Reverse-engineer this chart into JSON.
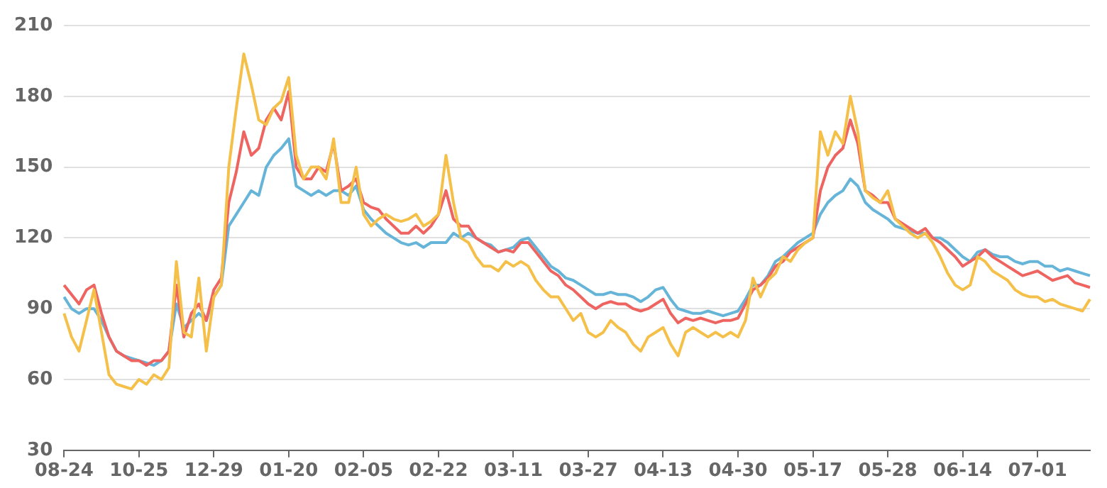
{
  "chart_data": {
    "type": "line",
    "categories": [
      "08-24",
      null,
      null,
      null,
      null,
      null,
      null,
      null,
      null,
      null,
      "10-25",
      null,
      null,
      null,
      null,
      null,
      null,
      null,
      null,
      null,
      "12-29",
      null,
      null,
      null,
      null,
      null,
      null,
      null,
      null,
      null,
      "01-20",
      null,
      null,
      null,
      null,
      null,
      null,
      null,
      null,
      null,
      "02-05",
      null,
      null,
      null,
      null,
      null,
      null,
      null,
      null,
      null,
      "02-22",
      null,
      null,
      null,
      null,
      null,
      null,
      null,
      null,
      null,
      "03-11",
      null,
      null,
      null,
      null,
      null,
      null,
      null,
      null,
      null,
      "03-27",
      null,
      null,
      null,
      null,
      null,
      null,
      null,
      null,
      null,
      "04-13",
      null,
      null,
      null,
      null,
      null,
      null,
      null,
      null,
      null,
      "04-30",
      null,
      null,
      null,
      null,
      null,
      null,
      null,
      null,
      null,
      "05-17",
      null,
      null,
      null,
      null,
      null,
      null,
      null,
      null,
      null,
      "05-28",
      null,
      null,
      null,
      null,
      null,
      null,
      null,
      null,
      null,
      "06-14",
      null,
      null,
      null,
      null,
      null,
      null,
      null,
      null,
      null,
      "07-01",
      null,
      null,
      null,
      null,
      null,
      null,
      null
    ],
    "series": [
      {
        "color": "#f5c04a",
        "values": [
          88,
          78,
          72,
          85,
          98,
          80,
          62,
          58,
          57,
          56,
          60,
          58,
          62,
          60,
          65,
          110,
          80,
          78,
          103,
          72,
          95,
          100,
          150,
          175,
          198,
          185,
          170,
          168,
          175,
          178,
          188,
          155,
          145,
          150,
          150,
          145,
          162,
          135,
          135,
          150,
          130,
          125,
          128,
          130,
          128,
          127,
          128,
          130,
          125,
          127,
          130,
          155,
          135,
          120,
          118,
          112,
          108,
          108,
          106,
          110,
          108,
          110,
          108,
          102,
          98,
          95,
          95,
          90,
          85,
          88,
          80,
          78,
          80,
          85,
          82,
          80,
          75,
          72,
          78,
          80,
          82,
          75,
          70,
          80,
          82,
          80,
          78,
          80,
          78,
          80,
          78,
          85,
          103,
          95,
          102,
          105,
          112,
          110,
          115,
          118,
          120,
          165,
          155,
          165,
          160,
          180,
          165,
          140,
          137,
          135,
          140,
          128,
          125,
          122,
          120,
          122,
          118,
          112,
          105,
          100,
          98,
          100,
          112,
          110,
          106,
          104,
          102,
          98,
          96,
          95,
          95,
          93,
          94,
          92,
          91,
          90,
          89,
          94
        ]
      },
      {
        "color": "#ee6460",
        "values": [
          100,
          96,
          92,
          98,
          100,
          88,
          78,
          72,
          70,
          68,
          68,
          66,
          68,
          68,
          72,
          100,
          78,
          88,
          92,
          85,
          98,
          103,
          135,
          148,
          165,
          155,
          158,
          170,
          175,
          170,
          182,
          150,
          145,
          145,
          150,
          148,
          160,
          140,
          142,
          145,
          135,
          133,
          132,
          128,
          125,
          122,
          122,
          125,
          122,
          125,
          130,
          140,
          128,
          125,
          125,
          120,
          118,
          116,
          114,
          115,
          114,
          118,
          118,
          114,
          110,
          106,
          104,
          100,
          98,
          95,
          92,
          90,
          92,
          93,
          92,
          92,
          90,
          89,
          90,
          92,
          94,
          88,
          84,
          86,
          85,
          86,
          85,
          84,
          85,
          85,
          86,
          92,
          98,
          100,
          103,
          108,
          110,
          114,
          116,
          118,
          120,
          140,
          150,
          155,
          158,
          170,
          160,
          140,
          138,
          135,
          135,
          128,
          126,
          124,
          122,
          124,
          120,
          118,
          115,
          112,
          108,
          110,
          112,
          115,
          112,
          110,
          108,
          106,
          104,
          105,
          106,
          104,
          102,
          103,
          104,
          101,
          100,
          99
        ]
      },
      {
        "color": "#66b5d8",
        "values": [
          95,
          90,
          88,
          90,
          90,
          85,
          78,
          72,
          70,
          69,
          68,
          67,
          66,
          68,
          72,
          92,
          82,
          85,
          88,
          85,
          95,
          100,
          125,
          130,
          135,
          140,
          138,
          150,
          155,
          158,
          162,
          142,
          140,
          138,
          140,
          138,
          140,
          140,
          138,
          142,
          132,
          128,
          125,
          122,
          120,
          118,
          117,
          118,
          116,
          118,
          118,
          118,
          122,
          120,
          122,
          120,
          118,
          117,
          114,
          115,
          116,
          119,
          120,
          116,
          112,
          108,
          106,
          103,
          102,
          100,
          98,
          96,
          96,
          97,
          96,
          96,
          95,
          93,
          95,
          98,
          99,
          94,
          90,
          89,
          88,
          88,
          89,
          88,
          87,
          88,
          89,
          94,
          100,
          100,
          104,
          110,
          112,
          115,
          118,
          120,
          122,
          130,
          135,
          138,
          140,
          145,
          142,
          135,
          132,
          130,
          128,
          125,
          124,
          123,
          122,
          122,
          120,
          120,
          118,
          115,
          112,
          110,
          114,
          115,
          113,
          112,
          112,
          110,
          109,
          110,
          110,
          108,
          108,
          106,
          107,
          106,
          105,
          104
        ]
      }
    ],
    "ylim": [
      30,
      210
    ],
    "yticks": [
      30,
      60,
      90,
      120,
      150,
      180,
      210
    ],
    "grid": "y",
    "legend": false,
    "marker": "none",
    "line_style": "solid"
  }
}
